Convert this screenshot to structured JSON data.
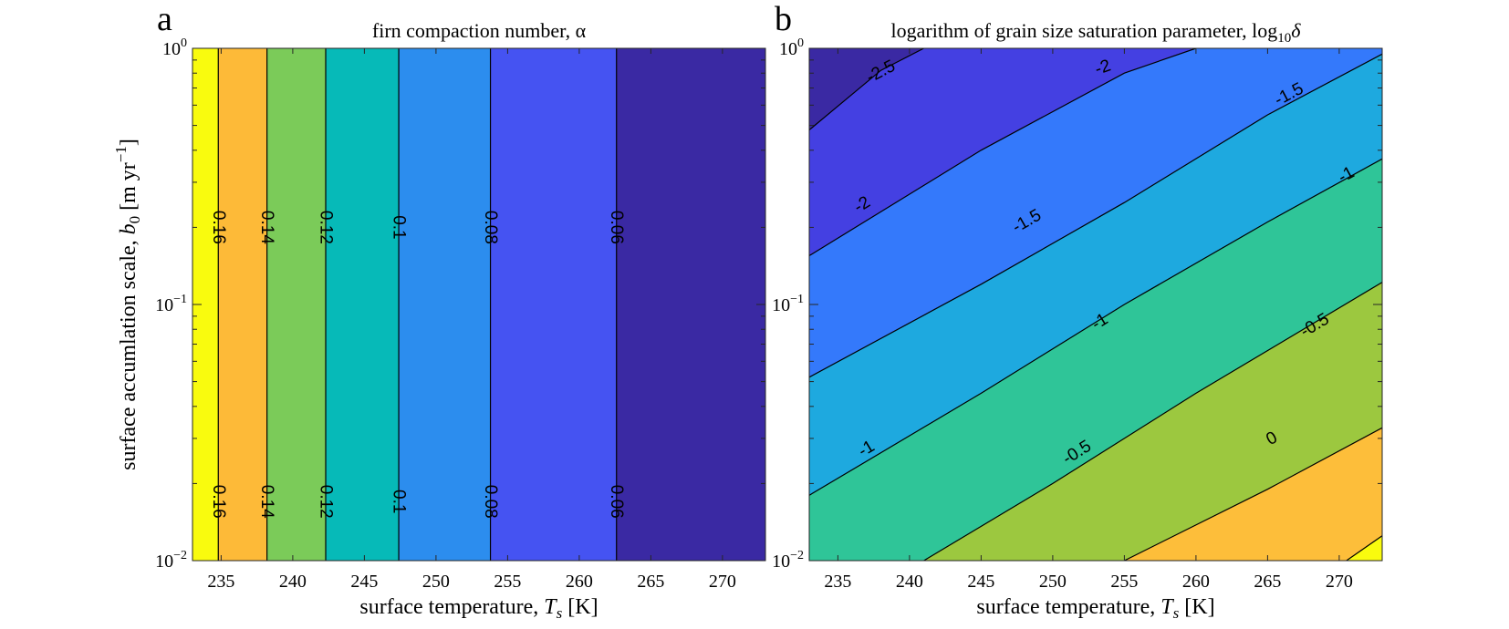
{
  "chart_data": [
    {
      "type": "contour",
      "panel_letter": "a",
      "title": "firn compaction number, α",
      "xlabel": "surface temperature, T_s [K]",
      "ylabel": "surface accumlation scale, b_0 [m yr^-1]",
      "xlim": [
        233,
        273
      ],
      "ylim": [
        0.01,
        1
      ],
      "yscale": "log",
      "x_ticks": [
        235,
        240,
        245,
        250,
        255,
        260,
        265,
        270
      ],
      "y_ticks": [
        0.01,
        0.1,
        1
      ],
      "y_tick_labels": [
        {
          "base": "10",
          "exp": "−2"
        },
        {
          "base": "10",
          "exp": "−1"
        },
        {
          "base": "10",
          "exp": "0"
        }
      ],
      "contour_lines": [
        {
          "level": "0.16",
          "T": 234.8
        },
        {
          "level": "0.14",
          "T": 238.2
        },
        {
          "level": "0.12",
          "T": 242.3
        },
        {
          "level": "0.1",
          "T": 247.4
        },
        {
          "level": "0.08",
          "T": 253.8
        },
        {
          "level": "0.06",
          "T": 262.6
        }
      ],
      "label_b": [
        0.2,
        0.017
      ],
      "fill_colors": [
        "#F9FB0E",
        "#FDBA38",
        "#7BCB59",
        "#06BAB8",
        "#2C8DEE",
        "#4553F2",
        "#3A29A3"
      ]
    },
    {
      "type": "contour",
      "panel_letter": "b",
      "title": "logarithm of grain size saturation parameter, log",
      "title_sub": "10",
      "title_tail": "δ",
      "xlabel": "surface temperature, T_s [K]",
      "xlim": [
        233,
        273
      ],
      "ylim": [
        0.01,
        1
      ],
      "yscale": "log",
      "x_ticks": [
        235,
        240,
        245,
        250,
        255,
        260,
        265,
        270
      ],
      "y_ticks": [
        0.01,
        0.1,
        1
      ],
      "y_tick_labels": [
        {
          "base": "10",
          "exp": "−2"
        },
        {
          "base": "10",
          "exp": "−1"
        },
        {
          "base": "10",
          "exp": "0"
        }
      ],
      "contour_lines": [
        {
          "level": "-2.5",
          "points": [
            [
              233.0,
              0.48
            ],
            [
              238.0,
              0.82
            ],
            [
              241.0,
              1.0
            ]
          ]
        },
        {
          "level": "-2",
          "points": [
            [
              233.0,
              0.155
            ],
            [
              245.0,
              0.4
            ],
            [
              255.0,
              0.8
            ],
            [
              260.0,
              1.0
            ]
          ]
        },
        {
          "level": "-1.5",
          "points": [
            [
              233.0,
              0.052
            ],
            [
              245.0,
              0.12
            ],
            [
              255.0,
              0.25
            ],
            [
              265.0,
              0.55
            ],
            [
              273.0,
              0.95
            ]
          ]
        },
        {
          "level": "-1",
          "points": [
            [
              233.0,
              0.018
            ],
            [
              245.0,
              0.045
            ],
            [
              255.0,
              0.1
            ],
            [
              265.0,
              0.21
            ],
            [
              273.0,
              0.37
            ]
          ]
        },
        {
          "level": "-0.5",
          "points": [
            [
              241.0,
              0.01
            ],
            [
              250.0,
              0.02
            ],
            [
              260.0,
              0.045
            ],
            [
              273.0,
              0.122
            ]
          ]
        },
        {
          "level": "0",
          "points": [
            [
              255.0,
              0.01
            ],
            [
              265.0,
              0.019
            ],
            [
              273.0,
              0.033
            ]
          ]
        },
        {
          "level": "0.5",
          "points": [
            [
              270.5,
              0.01
            ],
            [
              273.0,
              0.0125
            ]
          ]
        }
      ],
      "contour_labels": [
        {
          "text": "-2.5",
          "T": 238.0,
          "b": 0.81
        },
        {
          "text": "-2",
          "T": 253.5,
          "b": 0.84
        },
        {
          "text": "-1.5",
          "T": 266.5,
          "b": 0.66
        },
        {
          "text": "-2",
          "T": 236.7,
          "b": 0.245
        },
        {
          "text": "-1.5",
          "T": 248.2,
          "b": 0.211
        },
        {
          "text": "-1",
          "T": 270.5,
          "b": 0.32
        },
        {
          "text": "-1",
          "T": 253.3,
          "b": 0.0855
        },
        {
          "text": "-0.5",
          "T": 268.3,
          "b": 0.0828
        },
        {
          "text": "-1",
          "T": 237.0,
          "b": 0.0273
        },
        {
          "text": "-0.5",
          "T": 251.7,
          "b": 0.0264
        },
        {
          "text": "0",
          "T": 265.3,
          "b": 0.0299
        }
      ],
      "fill_colors": [
        "#3A29A3",
        "#4440E2",
        "#3479FB",
        "#1EA9DF",
        "#2FC598",
        "#9CC83F",
        "#FDBE3A",
        "#F9FB0E"
      ]
    }
  ]
}
